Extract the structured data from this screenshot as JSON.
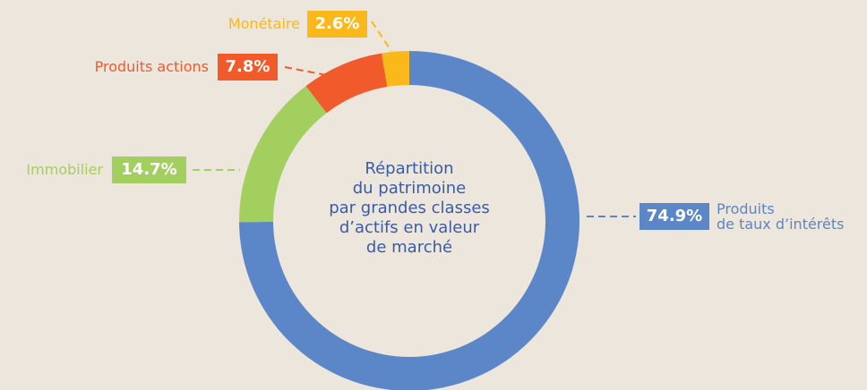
{
  "chart_data": {
    "type": "donut",
    "title": "Répartition\ndu patrimoine\npar grandes classes\nd’actifs en valeur\nde marché",
    "categories": [
      "Produits\nde taux d’intérêts",
      "Immobilier",
      "Produits actions",
      "Monétaire"
    ],
    "values": [
      74.9,
      14.7,
      7.8,
      2.6
    ],
    "value_labels": [
      "74.9%",
      "14.7%",
      "7.8%",
      "2.6%"
    ],
    "colors": [
      "#5b87c8",
      "#a3cf5f",
      "#f15a2b",
      "#fbb81b"
    ]
  }
}
